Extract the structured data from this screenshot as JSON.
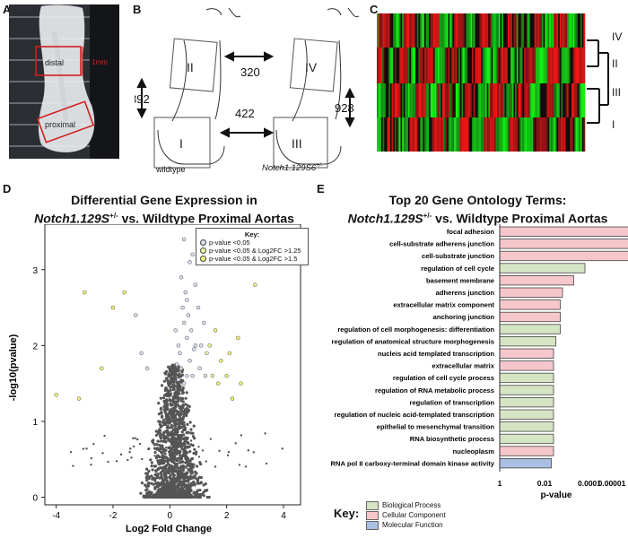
{
  "panels": {
    "a": {
      "letter": "A",
      "distal_label": "distal",
      "scale_label": "1mm",
      "proximal_label": "proximal"
    },
    "b": {
      "letter": "B",
      "region_labels": [
        "II",
        "IV",
        "I",
        "III"
      ],
      "counts": [
        "320",
        "892",
        "422",
        "928"
      ],
      "left_label": "wildtype",
      "right_label_prefix": "Notch1.129S6",
      "right_label_sup": "+/-"
    },
    "c": {
      "letter": "C",
      "row_labels": [
        "IV",
        "II",
        "III",
        "I"
      ]
    },
    "d": {
      "letter": "D",
      "title_line1": "Differential Gene Expression in",
      "title_italic": "Notch1.129S",
      "title_sup": "+/-",
      "title_rest": " vs. Wildtype Proximal Aortas",
      "key_title": "Key:",
      "key_items": [
        "p-value <0.05",
        "p-value <0.05 & Log2FC >1.25",
        "p-value <0.05 & Log2FC >1.5"
      ],
      "key_colors": [
        "#d8dff0",
        "#e8f5a0",
        "#f2f27a"
      ]
    },
    "e": {
      "letter": "E",
      "title_line1": "Top 20 Gene Ontology Terms:",
      "title_italic": "Notch1.129S",
      "title_sup": "+/-",
      "title_rest": " vs. Wildtype Proximal Aortas",
      "key_title": "Key:",
      "key_items": [
        "Biological Process",
        "Cellular Component",
        "Molecular Function"
      ],
      "key_colors": [
        "#d5e5c4",
        "#f5c6cb",
        "#a9bfe3"
      ]
    }
  },
  "chart_data": [
    {
      "type": "scatter",
      "xlabel": "Log2 Fold Change",
      "ylabel": "-log10(pvalue)",
      "xlim": [
        -4.4,
        4.6
      ],
      "ylim": [
        -0.1,
        3.6
      ],
      "x_ticks": [
        "-4",
        "-2",
        "0",
        "2",
        "4"
      ],
      "y_ticks": [
        "0",
        "1",
        "2",
        "3"
      ],
      "series": [
        {
          "points": [
            [
              0.3,
              2.0
            ],
            [
              0.5,
              2.3
            ],
            [
              0.6,
              2.6
            ],
            [
              0.4,
              2.9
            ],
            [
              0.7,
              3.1
            ],
            [
              0.8,
              3.2
            ],
            [
              0.5,
              3.4
            ],
            [
              0.9,
              2.8
            ],
            [
              1.0,
              2.5
            ],
            [
              0.6,
              2.1
            ],
            [
              0.2,
              2.2
            ],
            [
              0.35,
              1.9
            ],
            [
              1.1,
              2.0
            ],
            [
              1.3,
              1.9
            ],
            [
              1.5,
              1.6
            ],
            [
              1.6,
              2.2
            ],
            [
              1.8,
              1.8
            ],
            [
              2.0,
              1.6
            ],
            [
              2.2,
              1.3
            ],
            [
              2.5,
              1.5
            ],
            [
              3.0,
              2.8
            ],
            [
              -1.6,
              2.7
            ],
            [
              -2.0,
              2.5
            ],
            [
              -3.0,
              2.7
            ],
            [
              -1.2,
              2.4
            ],
            [
              -0.8,
              1.7
            ],
            [
              -1.0,
              1.9
            ],
            [
              -2.4,
              1.7
            ],
            [
              -3.2,
              1.3
            ],
            [
              -4.0,
              1.35
            ],
            [
              0.4,
              1.7
            ],
            [
              0.6,
              1.6
            ],
            [
              0.7,
              1.8
            ],
            [
              0.5,
              1.5
            ],
            [
              0.8,
              1.6
            ],
            [
              0.3,
              1.55
            ],
            [
              0.9,
              2.0
            ],
            [
              1.2,
              2.3
            ],
            [
              1.4,
              2.0
            ],
            [
              0.45,
              2.5
            ],
            [
              0.55,
              2.7
            ],
            [
              0.65,
              2.4
            ],
            [
              0.75,
              2.2
            ],
            [
              0.85,
              1.95
            ],
            [
              0.25,
              1.75
            ],
            [
              1.05,
              1.7
            ],
            [
              1.25,
              1.6
            ],
            [
              1.7,
              1.5
            ],
            [
              2.1,
              1.9
            ],
            [
              2.4,
              2.1
            ]
          ]
        }
      ]
    },
    {
      "type": "bar",
      "xlabel": "p-value",
      "x_ticks": [
        "1",
        "0.01",
        "0.0001",
        "0.00001"
      ],
      "categories": [
        "focal adhesion",
        "cell-substrate adherens junction",
        "cell-substrate junction",
        "regulation of cell cycle",
        "basement membrane",
        "adherens junction",
        "extracellular matrix component",
        "anchoring junction",
        "regulation of cell morphogenesis: differentiation",
        "regulation of anatomical structure morphogenesis",
        "nucleis acid templated transcription",
        "extracellular matrix",
        "regulation of cell cycle process",
        "regulation of RNA metabolic process",
        "regulation of transcription",
        "regulation of nucleic acid-templated transcription",
        "epithelial to mesenchymal transition",
        "RNA biosynthetic process",
        "nucleoplasm",
        "RNA pol II carboxy-terminal domain kinase activity"
      ],
      "values": [
        5.9,
        5.8,
        5.8,
        3.8,
        3.3,
        2.8,
        2.7,
        2.7,
        2.7,
        2.5,
        2.4,
        2.4,
        2.4,
        2.4,
        2.4,
        2.4,
        2.4,
        2.4,
        2.4,
        2.3
      ],
      "groups": [
        "CC",
        "CC",
        "CC",
        "BP",
        "CC",
        "CC",
        "CC",
        "CC",
        "BP",
        "BP",
        "CC",
        "CC",
        "BP",
        "BP",
        "BP",
        "BP",
        "BP",
        "BP",
        "CC",
        "MF"
      ]
    }
  ]
}
